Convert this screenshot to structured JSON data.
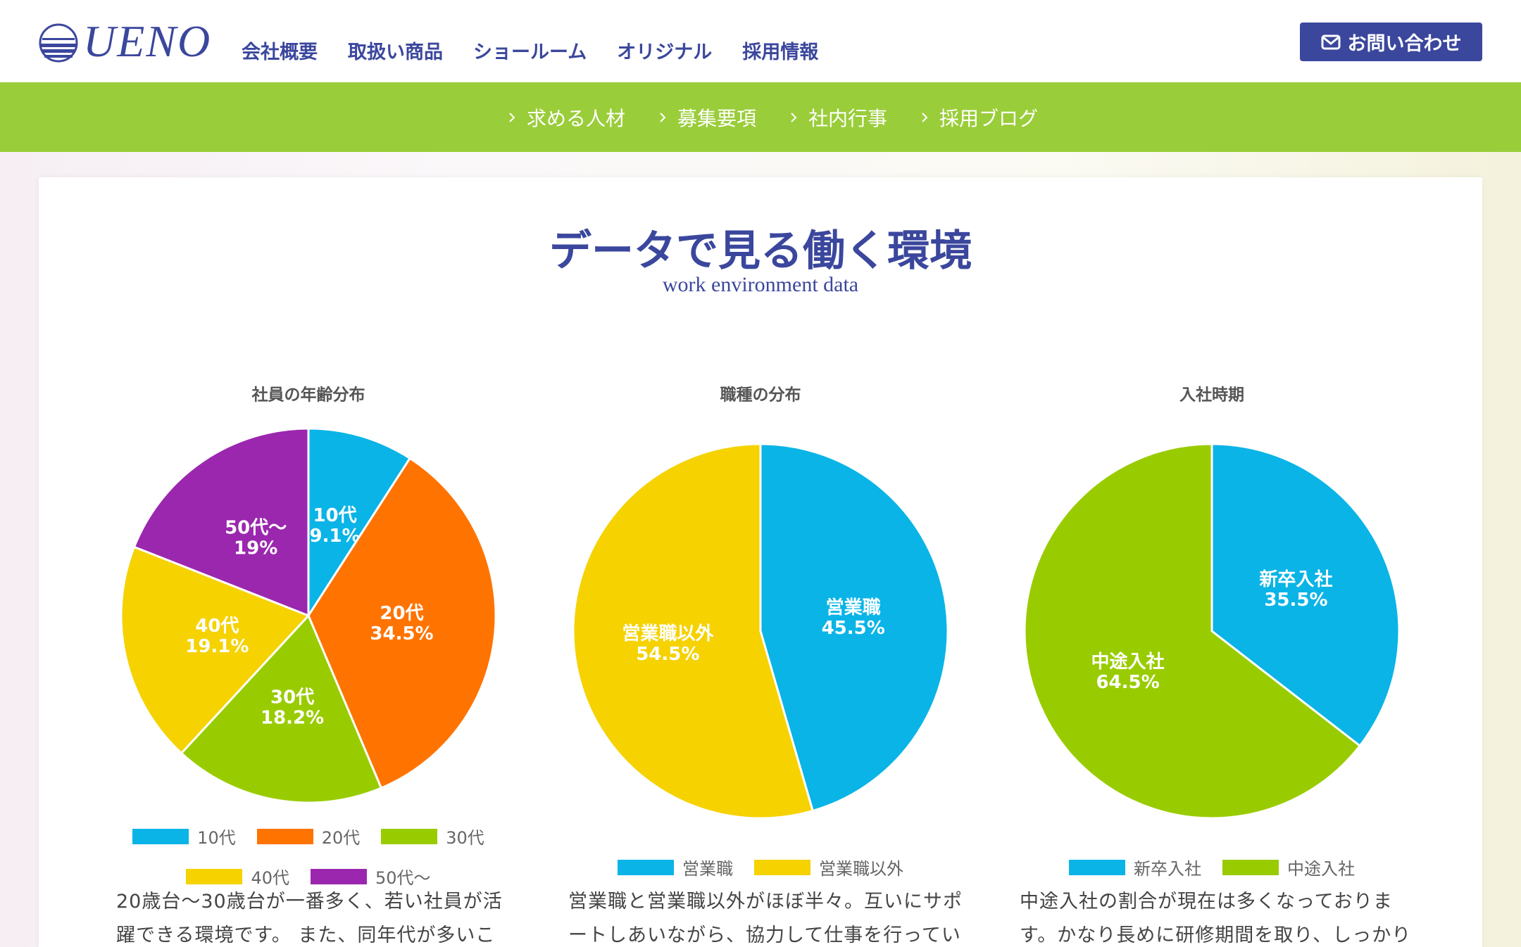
{
  "header": {
    "logo": "UENO",
    "nav": [
      "会社概要",
      "取扱い商品",
      "ショールーム",
      "オリジナル",
      "採用情報"
    ],
    "contact": "お問い合わせ"
  },
  "subnav": [
    "求める人材",
    "募集要項",
    "社内行事",
    "採用ブログ"
  ],
  "section": {
    "title": "データで見る働く環境",
    "subtitle": "work environment data"
  },
  "chart_data": [
    {
      "type": "pie",
      "title": "社員の年齢分布",
      "categories": [
        "10代",
        "20代",
        "30代",
        "40代",
        "50代〜"
      ],
      "values": [
        9.1,
        34.5,
        18.2,
        19.1,
        19
      ],
      "value_labels": [
        "9.1%",
        "34.5%",
        "18.2%",
        "19.1%",
        "19%"
      ],
      "colors": [
        "#0ab4e6",
        "#ff7300",
        "#99cc00",
        "#f5d200",
        "#9b27af"
      ],
      "description": "20歳台〜30歳台が一番多く、若い社員が活躍できる環境です。 また、同年代が多いこと"
    },
    {
      "type": "pie",
      "title": "職種の分布",
      "categories": [
        "営業職",
        "営業職以外"
      ],
      "values": [
        45.5,
        54.5
      ],
      "value_labels": [
        "45.5%",
        "54.5%"
      ],
      "colors": [
        "#0ab4e6",
        "#f5d200"
      ],
      "description": "営業職と営業職以外がほぼ半々。互いにサポートしあいながら、協力して仕事を行っていま"
    },
    {
      "type": "pie",
      "title": "入社時期",
      "categories": [
        "新卒入社",
        "中途入社"
      ],
      "values": [
        35.5,
        64.5
      ],
      "value_labels": [
        "35.5%",
        "64.5%"
      ],
      "colors": [
        "#0ab4e6",
        "#99cc00"
      ],
      "description": "中途入社の割合が現在は多くなっております。かなり長めに研修期間を取り、しっかりとし"
    }
  ]
}
